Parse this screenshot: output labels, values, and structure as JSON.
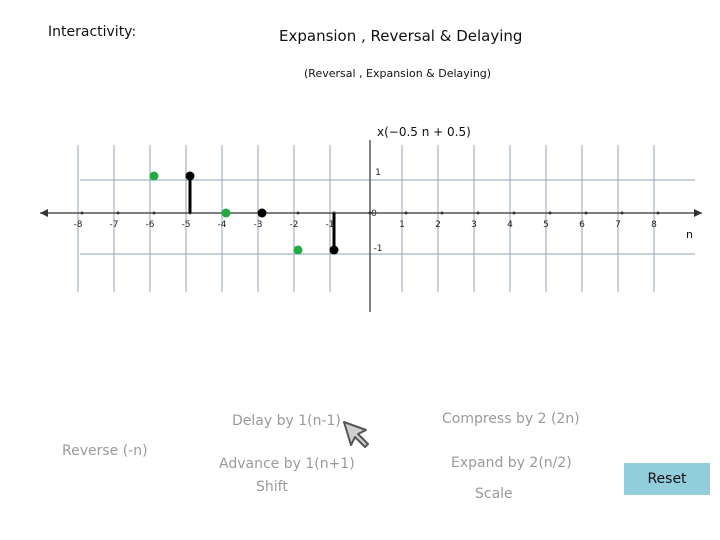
{
  "header": {
    "interactivity_label": "Interactivity:",
    "title": "Expansion , Reversal & Delaying",
    "subtitle": "(Reversal , Expansion & Delaying)"
  },
  "chart_data": {
    "type": "scatter",
    "title": "x(−0.5 n + 0.5)",
    "xlabel": "n",
    "xlim": [
      -8,
      8
    ],
    "ylim": [
      -1,
      1
    ],
    "x_ticks": [
      -8,
      -7,
      -6,
      -5,
      -4,
      -3,
      -2,
      -1,
      0,
      1,
      2,
      3,
      4,
      5,
      6,
      7,
      8
    ],
    "x_tick_labels": [
      "-8",
      "-7",
      "-6",
      "-5",
      "-4",
      "-3",
      "-2",
      "-1",
      "0",
      "1",
      "2",
      "3",
      "4",
      "5",
      "6",
      "7",
      "8"
    ],
    "y_ticks": [
      1,
      -1
    ],
    "y_tick_labels": [
      "1",
      "-1"
    ],
    "grid": true,
    "series": [
      {
        "color": "#000000",
        "stems": true,
        "points": [
          {
            "x": -5,
            "y": 1
          },
          {
            "x": -3,
            "y": 0
          },
          {
            "x": -1,
            "y": -1
          }
        ]
      },
      {
        "color": "#22aa44",
        "stems": false,
        "points": [
          {
            "x": -6,
            "y": 1
          },
          {
            "x": -4,
            "y": 0
          },
          {
            "x": -2,
            "y": -1
          }
        ]
      }
    ]
  },
  "controls": {
    "delay": "Delay by 1(n-1)",
    "compress": "Compress by 2 (2n)",
    "reverse": "Reverse (-n)",
    "advance": "Advance by 1(n+1)",
    "shift": "Shift",
    "expand": "Expand by 2(n/2)",
    "scale": "Scale",
    "reset": "Reset"
  },
  "icons": {
    "cursor": "arrow-cursor-icon"
  }
}
